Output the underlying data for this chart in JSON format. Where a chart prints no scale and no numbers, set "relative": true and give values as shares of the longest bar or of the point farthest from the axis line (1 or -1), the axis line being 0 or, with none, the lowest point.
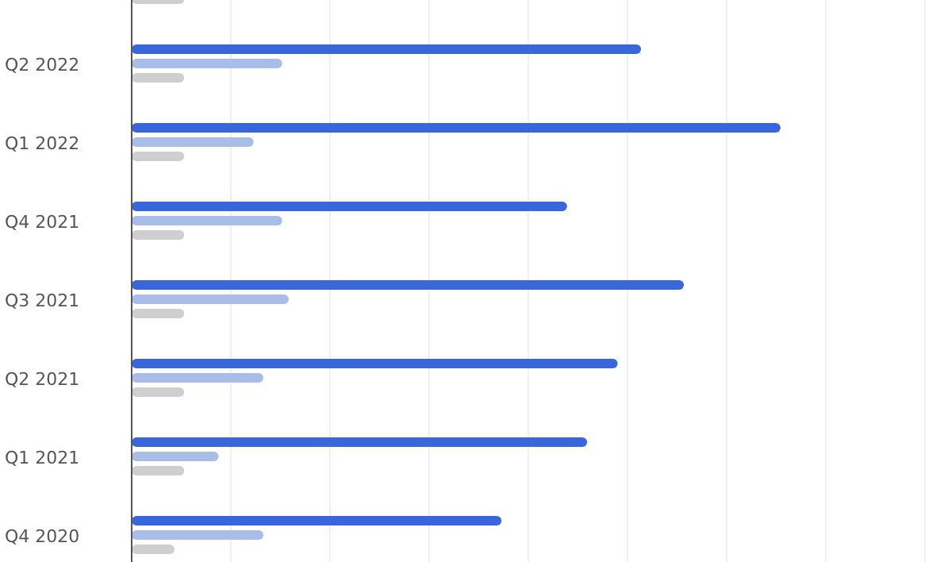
{
  "chart_data": {
    "type": "bar",
    "orientation": "horizontal",
    "relative": true,
    "grid": true,
    "categories": [
      null,
      "Q2 2022",
      "Q1 2022",
      "Q4 2021",
      "Q3 2021",
      "Q2 2021",
      "Q1 2021",
      "Q4 2020"
    ],
    "series": [
      {
        "color": "#3a66db",
        "values": [
          null,
          0.785,
          1,
          0.671,
          0.851,
          0.749,
          0.702,
          0.57
        ]
      },
      {
        "color": "#a9bde9",
        "values": [
          null,
          0.232,
          0.188,
          0.232,
          0.242,
          0.203,
          0.134,
          0.203
        ]
      },
      {
        "color": "#cfcfcf",
        "values": [
          0.081,
          0.081,
          0.081,
          0.081,
          0.081,
          0.081,
          0.081,
          0.066
        ]
      }
    ]
  }
}
